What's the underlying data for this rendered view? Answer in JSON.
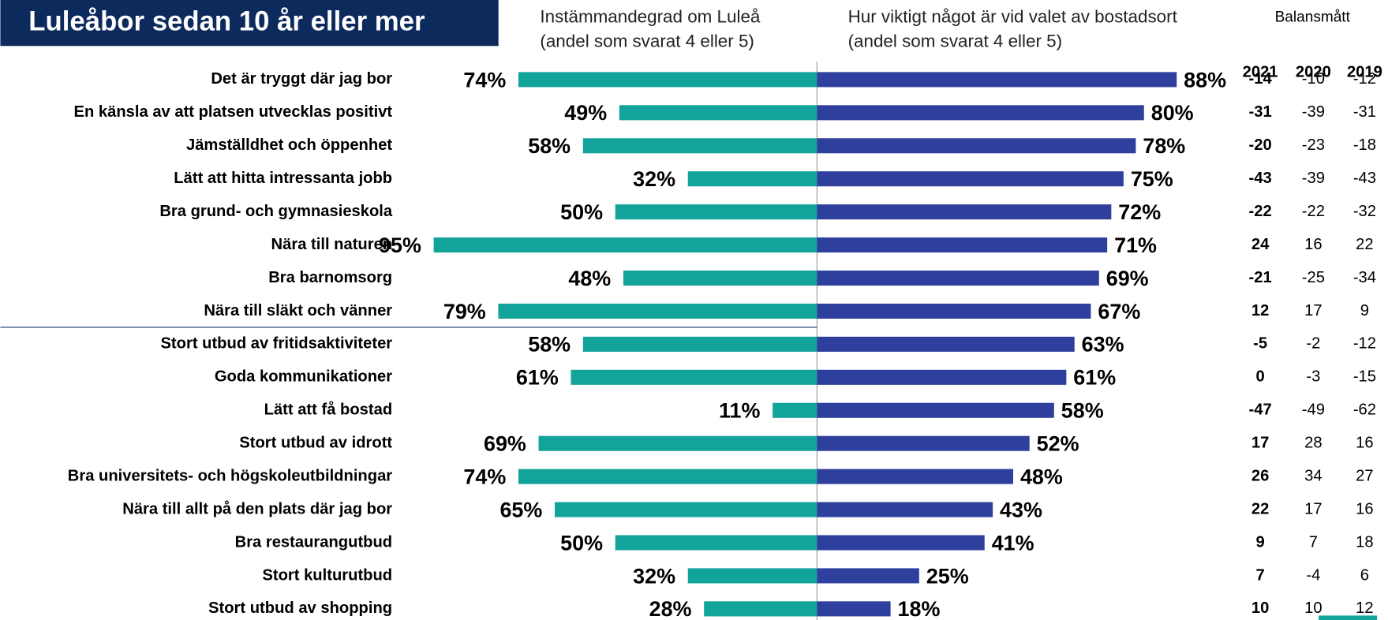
{
  "chart_data": {
    "type": "butterfly",
    "title": "Luleåbor sedan 10 år eller mer",
    "categories": [
      "Det är tryggt där jag bor",
      "En känsla av att platsen utvecklas positivt",
      "Jämställdhet och öppenhet",
      "Lätt att hitta intressanta jobb",
      "Bra grund- och gymnasieskola",
      "Nära till naturen",
      "Bra barnomsorg",
      "Nära till släkt och vänner",
      "Stort utbud av fritidsaktiviteter",
      "Goda kommunikationer",
      "Lätt att få bostad",
      "Stort utbud av idrott",
      "Bra universitets- och högskoleutbildningar",
      "Nära till allt på den plats där jag bor",
      "Bra restaurangutbud",
      "Stort kulturutbud",
      "Stort utbud av shopping"
    ],
    "series": [
      {
        "name": "Instämmandegrad om Luleå",
        "note": "(andel som svarat 4 eller 5)",
        "color": "#12a39a",
        "values": [
          74,
          49,
          58,
          32,
          50,
          95,
          48,
          79,
          58,
          61,
          11,
          69,
          74,
          65,
          50,
          32,
          28
        ],
        "value_labels": [
          "74%",
          "49%",
          "58%",
          "32%",
          "50%",
          "95%",
          "48%",
          "79%",
          "58%",
          "61%",
          "11%",
          "69%",
          "74%",
          "65%",
          "50%",
          "32%",
          "28%"
        ]
      },
      {
        "name": "Hur viktigt något är vid valet av bostadsort",
        "note": "(andel som svarat 4 eller 5)",
        "color": "#2e3f9e",
        "values": [
          88,
          80,
          78,
          75,
          72,
          71,
          69,
          67,
          63,
          61,
          58,
          52,
          48,
          43,
          41,
          25,
          18
        ],
        "value_labels": [
          "88%",
          "80%",
          "78%",
          "75%",
          "72%",
          "71%",
          "69%",
          "67%",
          "63%",
          "61%",
          "58%",
          "52%",
          "48%",
          "43%",
          "41%",
          "25%",
          "18%"
        ]
      }
    ],
    "table": {
      "title": "Balansmått",
      "columns": [
        "2021",
        "2020",
        "2019"
      ],
      "rows": [
        [
          -14,
          -10,
          -12
        ],
        [
          -31,
          -39,
          -31
        ],
        [
          -20,
          -23,
          -18
        ],
        [
          -43,
          -39,
          -43
        ],
        [
          -22,
          -22,
          -32
        ],
        [
          24,
          16,
          22
        ],
        [
          -21,
          -25,
          -34
        ],
        [
          12,
          17,
          9
        ],
        [
          -5,
          -2,
          -12
        ],
        [
          0,
          -3,
          -15
        ],
        [
          -47,
          -49,
          -62
        ],
        [
          17,
          28,
          16
        ],
        [
          26,
          34,
          27
        ],
        [
          22,
          17,
          16
        ],
        [
          9,
          7,
          18
        ],
        [
          7,
          -4,
          6
        ],
        [
          10,
          10,
          12
        ]
      ]
    }
  }
}
